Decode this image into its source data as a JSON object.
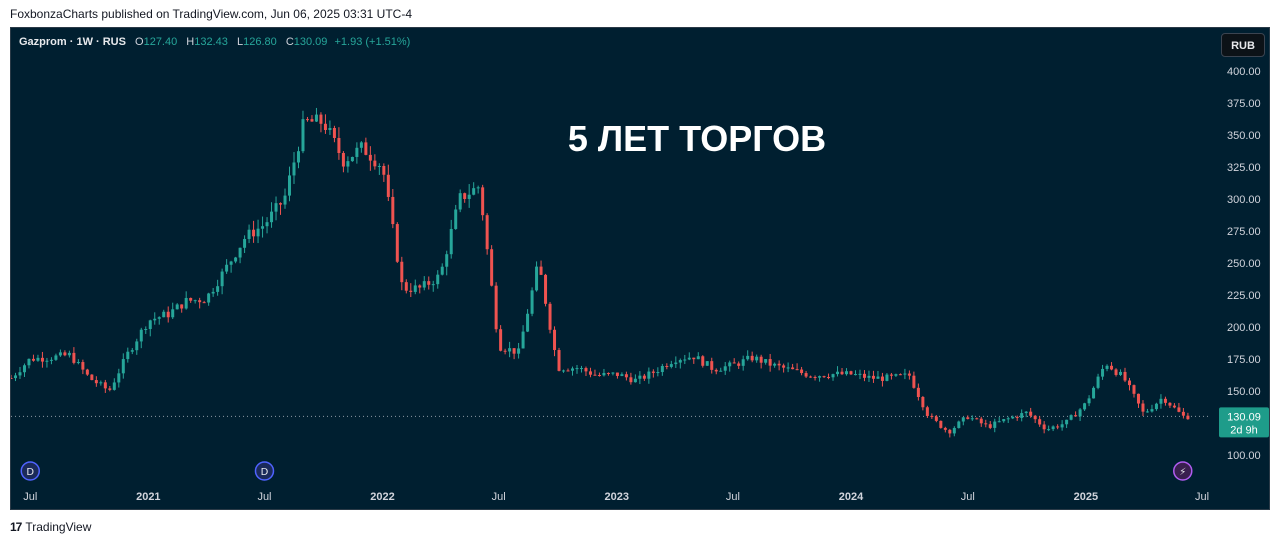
{
  "header": {
    "published": "FoxbonzaCharts published on TradingView.com, Jun 06, 2025 03:31 UTC-4"
  },
  "legend": {
    "symbol": "Gazprom · 1W · RUS",
    "open_label": "O",
    "open": "127.40",
    "high_label": "H",
    "high": "132.43",
    "low_label": "L",
    "low": "126.80",
    "close_label": "C",
    "close": "130.09",
    "change": "+1.93 (+1.51%)"
  },
  "currency_button": "RUB",
  "footer": {
    "brand_mark": "17",
    "brand": "TradingView"
  },
  "colors": {
    "background": "#001f30",
    "up": "#26a69a",
    "down": "#ef5350",
    "text": "#d1d4dc",
    "price_tag": "#1e9c8a"
  },
  "chart_data": {
    "type": "candlestick",
    "title": "5 ЛЕТ ТОРГОВ",
    "ylim": [
      78,
      410
    ],
    "y_ticks": [
      "400.00",
      "375.00",
      "350.00",
      "325.00",
      "300.00",
      "275.00",
      "250.00",
      "225.00",
      "200.00",
      "175.00",
      "150.00",
      "100.00"
    ],
    "x_ticks": [
      "Jul",
      "2021",
      "Jul",
      "2022",
      "Jul",
      "2023",
      "Jul",
      "2024",
      "Jul",
      "2025",
      "Jul"
    ],
    "last_price": "130.09",
    "countdown": "2d 9h",
    "markers": [
      {
        "type": "dividend",
        "label": "D",
        "date": "2020-07"
      },
      {
        "type": "dividend",
        "label": "D",
        "date": "2021-07"
      },
      {
        "type": "event",
        "label": "⚡",
        "date": "2025-06"
      }
    ],
    "price_path": [
      [
        "2020-06-01",
        160
      ],
      [
        "2020-07-01",
        175
      ],
      [
        "2020-08-01",
        176
      ],
      [
        "2020-09-01",
        178
      ],
      [
        "2020-10-01",
        160
      ],
      [
        "2020-11-01",
        150
      ],
      [
        "2020-12-01",
        180
      ],
      [
        "2021-01-01",
        205
      ],
      [
        "2021-02-01",
        210
      ],
      [
        "2021-03-01",
        220
      ],
      [
        "2021-04-01",
        222
      ],
      [
        "2021-05-01",
        245
      ],
      [
        "2021-06-01",
        270
      ],
      [
        "2021-07-01",
        280
      ],
      [
        "2021-08-01",
        300
      ],
      [
        "2021-09-01",
        360
      ],
      [
        "2021-10-01",
        360
      ],
      [
        "2021-11-01",
        330
      ],
      [
        "2021-12-01",
        340
      ],
      [
        "2022-01-01",
        325
      ],
      [
        "2022-02-01",
        230
      ],
      [
        "2022-03-01",
        230
      ],
      [
        "2022-04-01",
        240
      ],
      [
        "2022-05-01",
        300
      ],
      [
        "2022-06-01",
        310
      ],
      [
        "2022-07-01",
        185
      ],
      [
        "2022-08-01",
        180
      ],
      [
        "2022-09-01",
        250
      ],
      [
        "2022-10-01",
        168
      ],
      [
        "2022-11-01",
        168
      ],
      [
        "2022-12-01",
        162
      ],
      [
        "2023-01-01",
        163
      ],
      [
        "2023-02-01",
        158
      ],
      [
        "2023-03-01",
        165
      ],
      [
        "2023-04-01",
        175
      ],
      [
        "2023-05-01",
        177
      ],
      [
        "2023-06-01",
        167
      ],
      [
        "2023-07-01",
        170
      ],
      [
        "2023-08-01",
        176
      ],
      [
        "2023-09-01",
        170
      ],
      [
        "2023-10-01",
        166
      ],
      [
        "2023-11-01",
        162
      ],
      [
        "2023-12-01",
        163
      ],
      [
        "2024-01-01",
        163
      ],
      [
        "2024-02-01",
        160
      ],
      [
        "2024-03-01",
        160
      ],
      [
        "2024-04-01",
        162
      ],
      [
        "2024-05-01",
        130
      ],
      [
        "2024-06-01",
        118
      ],
      [
        "2024-07-01",
        130
      ],
      [
        "2024-08-01",
        122
      ],
      [
        "2024-09-01",
        128
      ],
      [
        "2024-10-01",
        133
      ],
      [
        "2024-11-01",
        120
      ],
      [
        "2024-12-01",
        125
      ],
      [
        "2025-01-01",
        140
      ],
      [
        "2025-02-01",
        172
      ],
      [
        "2025-03-01",
        160
      ],
      [
        "2025-04-01",
        132
      ],
      [
        "2025-05-01",
        145
      ],
      [
        "2025-06-01",
        130
      ]
    ]
  }
}
